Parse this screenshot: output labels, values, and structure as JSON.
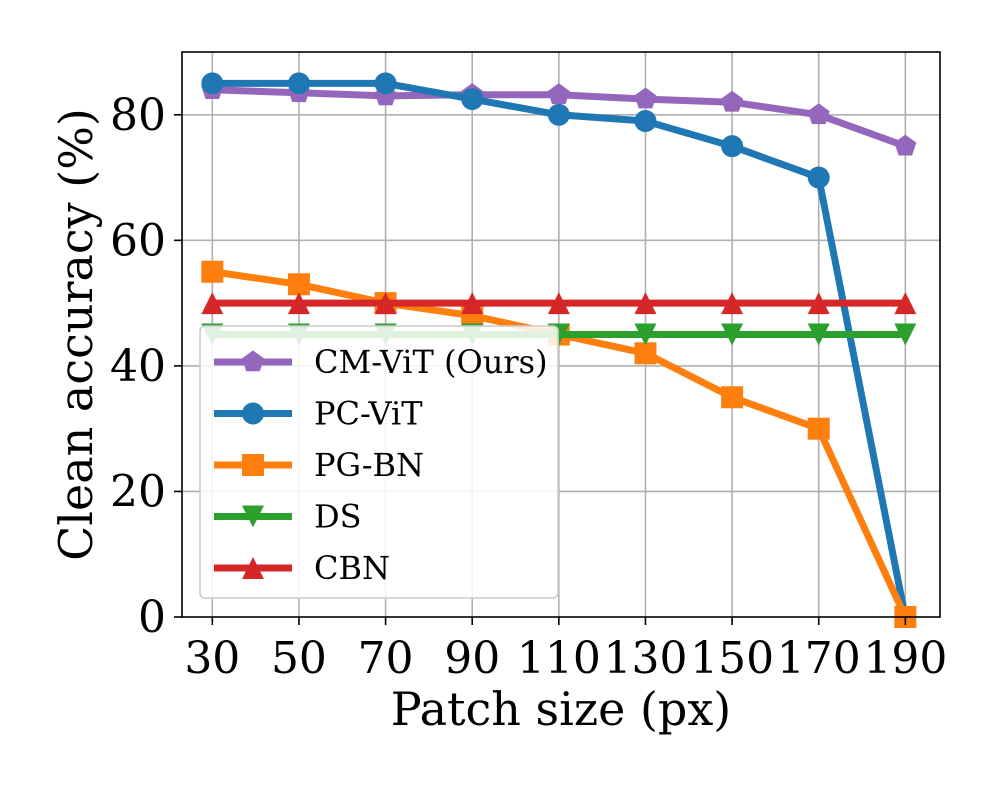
{
  "chart_data": {
    "type": "line",
    "title": "",
    "xlabel": "Patch size (px)",
    "ylabel": "Clean accuracy (%)",
    "x": [
      30,
      50,
      70,
      90,
      110,
      130,
      150,
      170,
      190
    ],
    "x_tick_labels": [
      "30",
      "50",
      "70",
      "90",
      "110",
      "130",
      "150",
      "170",
      "190"
    ],
    "xlim": [
      23,
      198
    ],
    "ylim": [
      0,
      90
    ],
    "y_ticks": [
      0,
      20,
      40,
      60,
      80
    ],
    "y_tick_labels": [
      "0",
      "20",
      "40",
      "60",
      "80"
    ],
    "grid": true,
    "legend_position": "lower-left",
    "series": [
      {
        "name": "CM-ViT (Ours)",
        "color": "#9467bd",
        "marker": "pentagon",
        "values": [
          84,
          83.5,
          83,
          83.2,
          83.2,
          82.5,
          82,
          80,
          75
        ]
      },
      {
        "name": "PC-ViT",
        "color": "#1f77b4",
        "marker": "circle",
        "values": [
          85,
          85,
          85,
          82.5,
          80,
          79,
          75,
          70,
          0
        ]
      },
      {
        "name": "PG-BN",
        "color": "#ff7f0e",
        "marker": "square",
        "values": [
          55,
          53,
          50,
          48,
          45,
          42,
          35,
          30,
          0
        ]
      },
      {
        "name": "DS",
        "color": "#2ca02c",
        "marker": "triangle-down",
        "values": [
          45,
          45,
          45,
          45,
          45,
          45,
          45,
          45,
          45
        ]
      },
      {
        "name": "CBN",
        "color": "#d62728",
        "marker": "triangle-up",
        "values": [
          50,
          50,
          50,
          50,
          50,
          50,
          50,
          50,
          50
        ]
      }
    ]
  }
}
